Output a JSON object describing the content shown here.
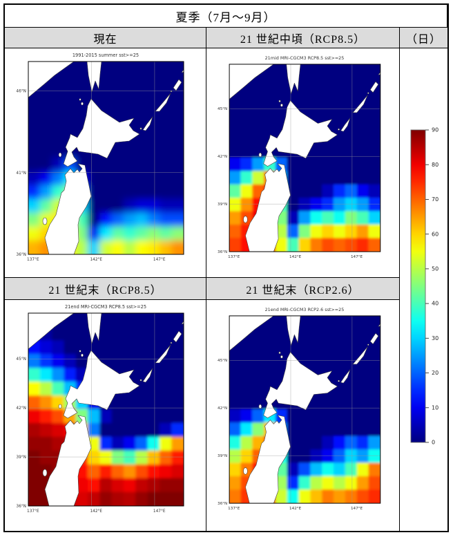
{
  "table": {
    "season_title": "夏季（7月～9月）",
    "col_headers": [
      "現在",
      "21 世紀中頃（RCP8.5）"
    ],
    "unit_label": "（日）",
    "row_headers": [
      "21 世紀末（RCP8.5）",
      "21 世紀末（RCP2.6）"
    ]
  },
  "chart_data": {
    "type": "heatmap",
    "description": "Number of summer days with SST>=25C around northern Japan (Hokkaido/Tohoku), four scenario panels sharing one colorbar",
    "unit": "日 (days)",
    "value_range": [
      0,
      90
    ],
    "map_extent": {
      "lon": [
        137,
        149.3
      ],
      "lat": [
        36,
        47.8
      ]
    },
    "colorbar": {
      "colormap": "jet",
      "ticks": [
        0,
        10,
        20,
        30,
        40,
        50,
        60,
        70,
        80,
        90
      ],
      "min_color": "#000080",
      "max_color": "#800000"
    },
    "panels": [
      {
        "name": "present",
        "title": "1991-2015 summer sst>=25",
        "lat_ticks": [
          46,
          41,
          36
        ],
        "lon_ticks": [
          137,
          142,
          147
        ],
        "grid_cols": 13,
        "grid_rows": 14,
        "values": [
          [
            0,
            0,
            0,
            0,
            0,
            0,
            0,
            0,
            0,
            0,
            0,
            0,
            0
          ],
          [
            0,
            0,
            0,
            0,
            0,
            0,
            0,
            0,
            0,
            0,
            0,
            0,
            0
          ],
          [
            0,
            0,
            0,
            0,
            0,
            0,
            0,
            0,
            0,
            0,
            0,
            0,
            0
          ],
          [
            0,
            0,
            0,
            0,
            0,
            0,
            0,
            0,
            0,
            0,
            0,
            0,
            0
          ],
          [
            0,
            0,
            0,
            0,
            0,
            0,
            0,
            0,
            0,
            0,
            0,
            0,
            0
          ],
          [
            0,
            0,
            0,
            0,
            0,
            0,
            0,
            0,
            0,
            0,
            0,
            0,
            0
          ],
          [
            0,
            0,
            0,
            0,
            0,
            0,
            0,
            0,
            0,
            0,
            0,
            0,
            0
          ],
          [
            0,
            0,
            5,
            18,
            0,
            0,
            0,
            0,
            0,
            0,
            0,
            0,
            0
          ],
          [
            5,
            10,
            22,
            32,
            10,
            0,
            0,
            0,
            0,
            0,
            0,
            0,
            0
          ],
          [
            15,
            25,
            38,
            46,
            20,
            0,
            0,
            0,
            0,
            0,
            0,
            0,
            0
          ],
          [
            30,
            42,
            52,
            56,
            30,
            0,
            0,
            0,
            5,
            8,
            8,
            5,
            5
          ],
          [
            45,
            54,
            58,
            60,
            40,
            0,
            12,
            20,
            25,
            28,
            22,
            18,
            18
          ],
          [
            55,
            60,
            63,
            60,
            45,
            10,
            32,
            42,
            38,
            42,
            46,
            42,
            46
          ],
          [
            63,
            66,
            62,
            58,
            50,
            30,
            52,
            56,
            50,
            56,
            58,
            62,
            66
          ]
        ]
      },
      {
        "name": "mid21-rcp85",
        "title": "21mid MRI-CGCM3 RCP8.5 sst>=25",
        "lat_ticks": [
          45,
          42,
          39,
          36
        ],
        "lon_ticks": [
          137,
          142,
          147
        ],
        "grid_cols": 13,
        "grid_rows": 14,
        "values": [
          [
            0,
            0,
            0,
            0,
            0,
            0,
            0,
            0,
            0,
            0,
            0,
            0,
            0
          ],
          [
            0,
            0,
            0,
            0,
            0,
            0,
            0,
            0,
            0,
            0,
            0,
            0,
            0
          ],
          [
            0,
            0,
            0,
            0,
            0,
            0,
            0,
            0,
            0,
            0,
            0,
            0,
            0
          ],
          [
            0,
            0,
            0,
            0,
            0,
            0,
            0,
            0,
            0,
            0,
            0,
            0,
            0
          ],
          [
            0,
            0,
            0,
            0,
            0,
            0,
            0,
            0,
            0,
            0,
            0,
            0,
            0
          ],
          [
            0,
            0,
            0,
            0,
            0,
            0,
            0,
            0,
            0,
            0,
            0,
            0,
            0
          ],
          [
            0,
            0,
            0,
            0,
            0,
            0,
            0,
            0,
            0,
            0,
            0,
            0,
            0
          ],
          [
            10,
            15,
            25,
            38,
            20,
            0,
            0,
            0,
            0,
            0,
            0,
            0,
            0
          ],
          [
            25,
            38,
            52,
            68,
            25,
            0,
            0,
            0,
            0,
            0,
            0,
            0,
            0
          ],
          [
            42,
            55,
            70,
            80,
            30,
            0,
            0,
            0,
            5,
            15,
            20,
            10,
            5
          ],
          [
            55,
            66,
            78,
            84,
            40,
            0,
            5,
            10,
            15,
            25,
            30,
            25,
            15
          ],
          [
            65,
            72,
            80,
            84,
            45,
            5,
            25,
            35,
            40,
            35,
            45,
            40,
            30
          ],
          [
            70,
            76,
            82,
            84,
            50,
            20,
            45,
            55,
            60,
            55,
            60,
            65,
            55
          ],
          [
            73,
            78,
            82,
            80,
            55,
            40,
            60,
            68,
            72,
            70,
            72,
            75,
            70
          ]
        ]
      },
      {
        "name": "end21-rcp85",
        "title": "21end MRI-CGCM3 RCP8.5 sst>=25",
        "lat_ticks": [
          45,
          42,
          39,
          36
        ],
        "lon_ticks": [
          137,
          142,
          147
        ],
        "grid_cols": 13,
        "grid_rows": 14,
        "values": [
          [
            0,
            0,
            0,
            0,
            0,
            0,
            0,
            0,
            0,
            0,
            0,
            0,
            0
          ],
          [
            5,
            3,
            0,
            0,
            0,
            0,
            0,
            0,
            0,
            0,
            0,
            0,
            0
          ],
          [
            12,
            8,
            5,
            0,
            0,
            0,
            0,
            0,
            0,
            0,
            0,
            0,
            0
          ],
          [
            22,
            16,
            10,
            5,
            0,
            0,
            0,
            0,
            0,
            0,
            0,
            0,
            0
          ],
          [
            38,
            32,
            24,
            14,
            5,
            0,
            0,
            0,
            0,
            0,
            0,
            0,
            0
          ],
          [
            56,
            50,
            40,
            28,
            15,
            5,
            0,
            0,
            0,
            0,
            0,
            0,
            0
          ],
          [
            70,
            66,
            60,
            48,
            30,
            10,
            0,
            0,
            0,
            0,
            0,
            0,
            0
          ],
          [
            80,
            76,
            72,
            64,
            45,
            28,
            5,
            0,
            0,
            0,
            0,
            0,
            0
          ],
          [
            86,
            84,
            82,
            80,
            60,
            22,
            0,
            0,
            0,
            0,
            0,
            5,
            15
          ],
          [
            88,
            88,
            86,
            85,
            70,
            55,
            15,
            5,
            10,
            20,
            35,
            55,
            65
          ],
          [
            90,
            88,
            88,
            86,
            75,
            60,
            55,
            45,
            40,
            50,
            62,
            70,
            76
          ],
          [
            90,
            90,
            88,
            86,
            78,
            70,
            76,
            70,
            66,
            72,
            78,
            80,
            82
          ],
          [
            90,
            90,
            88,
            86,
            80,
            78,
            85,
            82,
            80,
            84,
            86,
            88,
            88
          ],
          [
            90,
            90,
            88,
            85,
            82,
            84,
            88,
            86,
            85,
            88,
            90,
            90,
            90
          ]
        ]
      },
      {
        "name": "end21-rcp26",
        "title": "21end MRI-CGCM3 RCP2.6 sst>=25",
        "lat_ticks": [
          45,
          42,
          39,
          36
        ],
        "lon_ticks": [
          137,
          142,
          147
        ],
        "grid_cols": 13,
        "grid_rows": 14,
        "values": [
          [
            0,
            0,
            0,
            0,
            0,
            0,
            0,
            0,
            0,
            0,
            0,
            0,
            0
          ],
          [
            0,
            0,
            0,
            0,
            0,
            0,
            0,
            0,
            0,
            0,
            0,
            0,
            0
          ],
          [
            0,
            0,
            0,
            0,
            0,
            0,
            0,
            0,
            0,
            0,
            0,
            0,
            0
          ],
          [
            0,
            0,
            0,
            0,
            0,
            0,
            0,
            0,
            0,
            0,
            0,
            0,
            0
          ],
          [
            0,
            0,
            0,
            0,
            0,
            0,
            0,
            0,
            0,
            0,
            0,
            0,
            0
          ],
          [
            0,
            0,
            0,
            0,
            0,
            0,
            0,
            0,
            0,
            0,
            0,
            0,
            0
          ],
          [
            0,
            0,
            0,
            0,
            0,
            0,
            0,
            0,
            0,
            0,
            0,
            0,
            0
          ],
          [
            6,
            10,
            20,
            32,
            15,
            0,
            0,
            0,
            0,
            0,
            0,
            0,
            0
          ],
          [
            20,
            32,
            46,
            62,
            22,
            0,
            0,
            0,
            0,
            0,
            0,
            0,
            0
          ],
          [
            36,
            50,
            63,
            73,
            28,
            0,
            0,
            0,
            5,
            12,
            20,
            15,
            25
          ],
          [
            50,
            60,
            70,
            78,
            36,
            0,
            0,
            5,
            10,
            20,
            30,
            25,
            35
          ],
          [
            60,
            68,
            76,
            80,
            42,
            5,
            18,
            28,
            35,
            30,
            40,
            55,
            68
          ],
          [
            65,
            72,
            78,
            80,
            48,
            15,
            38,
            50,
            55,
            50,
            55,
            65,
            72
          ],
          [
            68,
            74,
            78,
            76,
            52,
            35,
            55,
            62,
            68,
            65,
            68,
            72,
            75
          ]
        ]
      }
    ]
  }
}
